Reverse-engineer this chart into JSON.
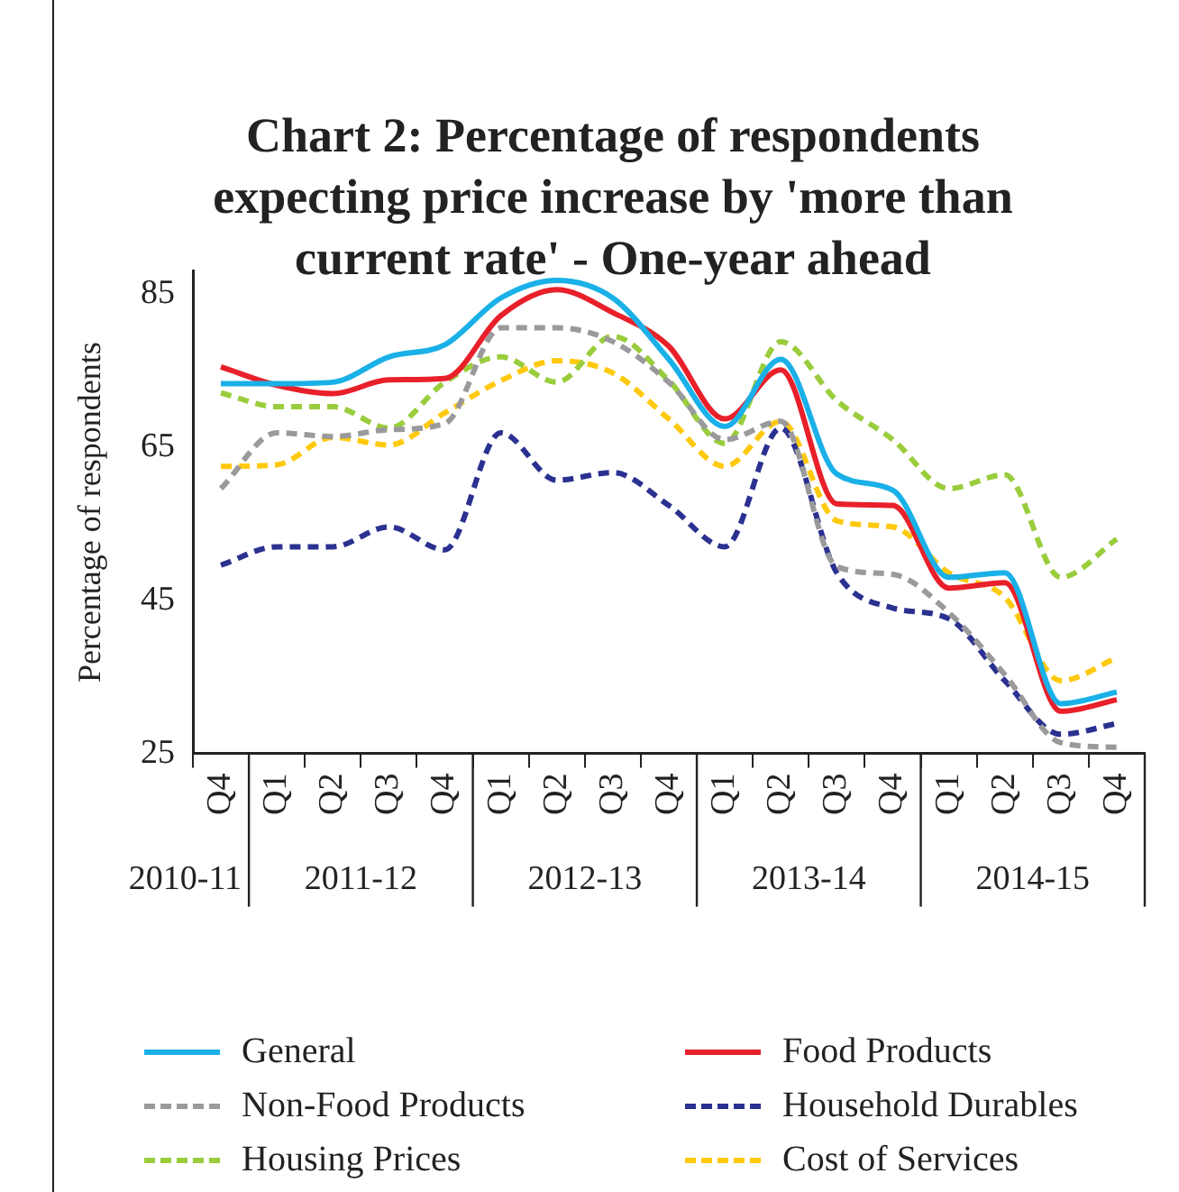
{
  "chart_data": {
    "type": "line",
    "title": "Chart 2: Percentage of respondents expecting price increase by 'more than current rate'  - One-year ahead",
    "ylabel": "Percentage of respondents",
    "categories": [
      "Q4",
      "Q1",
      "Q2",
      "Q3",
      "Q4",
      "Q1",
      "Q2",
      "Q3",
      "Q4",
      "Q1",
      "Q2",
      "Q3",
      "Q4",
      "Q1",
      "Q2",
      "Q3",
      "Q4"
    ],
    "annotations": [
      "2010-11",
      "2011-12",
      "2012-13",
      "2013-14",
      "2014-15"
    ],
    "ylim": [
      25,
      88
    ],
    "yticks": [
      25,
      45,
      65,
      85
    ],
    "grid": false,
    "legend": "bottom",
    "marker": "none",
    "series": [
      {
        "name": "General",
        "color": "#1ab0e8",
        "line_style": "solid",
        "values": [
          73.3,
          73.3,
          73.5,
          76.8,
          78.4,
          84.5,
          86.8,
          84.5,
          76.5,
          67.7,
          76.5,
          61.5,
          59.4,
          48,
          48.6,
          31.5,
          33
        ]
      },
      {
        "name": "Food Products",
        "color": "#e8202a",
        "line_style": "solid",
        "values": [
          75.5,
          73.1,
          72,
          73.8,
          74,
          82.2,
          85.6,
          82.6,
          78.2,
          68.7,
          75.1,
          57.6,
          57.4,
          46.6,
          47.3,
          30.5,
          32
        ]
      },
      {
        "name": "Non-Food Products",
        "color": "#9a9a9c",
        "line_style": "dashed",
        "values": [
          59.6,
          66.9,
          66.4,
          67.3,
          68.1,
          80.6,
          80.6,
          78.8,
          73.5,
          66,
          68.4,
          49.4,
          48.4,
          43.4,
          35.3,
          26.4,
          25.8
        ]
      },
      {
        "name": "Household Durables",
        "color": "#2b3190",
        "line_style": "dashed",
        "values": [
          49.6,
          52,
          52,
          54.6,
          51.6,
          66.9,
          60.7,
          61.7,
          57.4,
          52,
          67.5,
          48.6,
          44,
          42.6,
          34.5,
          27.5,
          28.9
        ]
      },
      {
        "name": "Housing Prices",
        "color": "#9acd3c",
        "line_style": "dashed",
        "values": [
          72.1,
          70.3,
          70.3,
          67.5,
          73.5,
          76.8,
          73.5,
          79.5,
          73.7,
          65.5,
          78.8,
          71.1,
          66,
          59.6,
          61.4,
          48,
          53
        ]
      },
      {
        "name": "Cost of Services",
        "color": "#ffc90e",
        "line_style": "dashed",
        "values": [
          62.5,
          62.7,
          66.3,
          65.3,
          69.5,
          73.7,
          76.3,
          74.7,
          68.7,
          62.5,
          68.4,
          55.4,
          54.6,
          48.6,
          45.4,
          34.5,
          37.5
        ]
      }
    ]
  }
}
